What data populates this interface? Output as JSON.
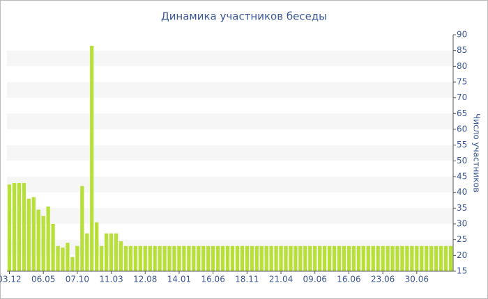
{
  "chart_data": {
    "type": "bar",
    "title": "Динамика участников беседы",
    "y_label": "Число участников",
    "categories": [
      "03.12",
      null,
      null,
      null,
      null,
      null,
      null,
      "06.05",
      null,
      null,
      null,
      null,
      null,
      null,
      "07.10",
      null,
      null,
      null,
      null,
      null,
      null,
      "11.03",
      null,
      null,
      null,
      null,
      null,
      null,
      "12.08",
      null,
      null,
      null,
      null,
      null,
      null,
      "14.01",
      null,
      null,
      null,
      null,
      null,
      null,
      "16.06",
      null,
      null,
      null,
      null,
      null,
      null,
      "18.11",
      null,
      null,
      null,
      null,
      null,
      null,
      "21.04",
      null,
      null,
      null,
      null,
      null,
      null,
      "09.06",
      null,
      null,
      null,
      null,
      null,
      null,
      "16.06",
      null,
      null,
      null,
      null,
      null,
      null,
      "23.06",
      null,
      null,
      null,
      null,
      null,
      null,
      "30.06",
      null,
      null,
      null,
      null,
      null,
      null,
      null
    ],
    "values": [
      42.5,
      43,
      43,
      43,
      38,
      38.5,
      34.5,
      32.5,
      35.5,
      30,
      23,
      22.5,
      24,
      19.5,
      23,
      42,
      27,
      86.5,
      30.5,
      23,
      27,
      27,
      27,
      24.5,
      23,
      23,
      23,
      23,
      23,
      23,
      23,
      23,
      23,
      23,
      23,
      23,
      23,
      23,
      23,
      23,
      23,
      23,
      23,
      23,
      23,
      23,
      23,
      23,
      23,
      23,
      23,
      23,
      23,
      23,
      23,
      23,
      23,
      23,
      23,
      23,
      23,
      23,
      23,
      23,
      23,
      23,
      23,
      23,
      23,
      23,
      23,
      23,
      23,
      23,
      23,
      23,
      23,
      23,
      23,
      23,
      23,
      23,
      23,
      23,
      23,
      23,
      23,
      23,
      23,
      23,
      23,
      23
    ],
    "color": "#b8e03a",
    "ylim": [
      15,
      90
    ],
    "yticks": [
      15,
      20,
      25,
      30,
      35,
      40,
      45,
      50,
      55,
      60,
      65,
      70,
      75,
      80,
      85,
      90
    ],
    "grid": true
  }
}
